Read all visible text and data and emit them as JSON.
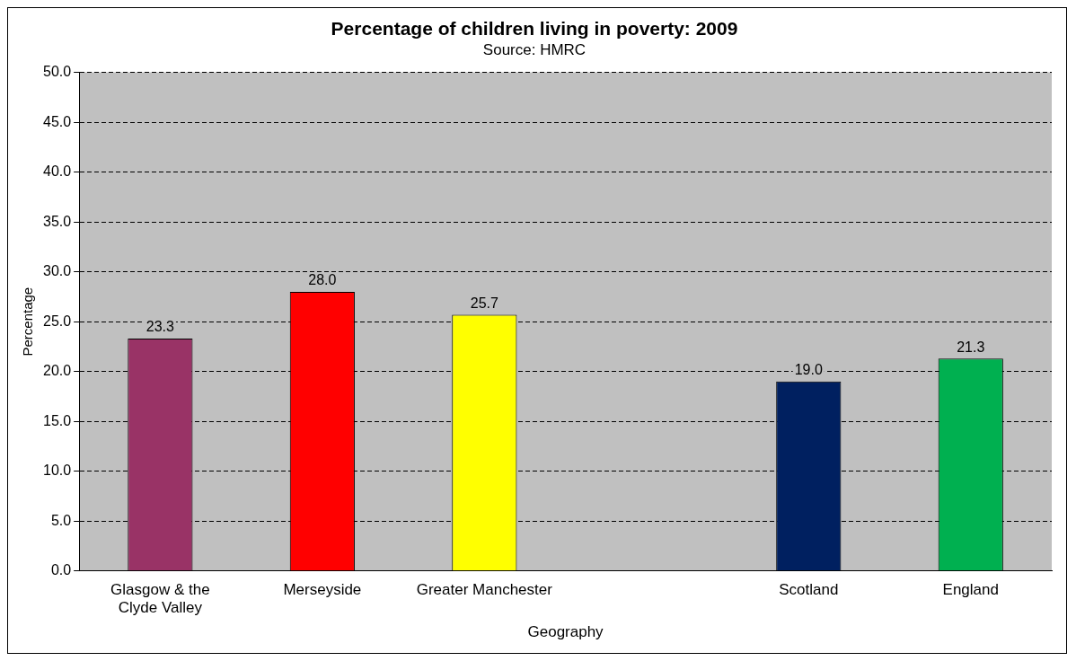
{
  "chart_data": {
    "type": "bar",
    "title": "Percentage of children living in poverty: 2009",
    "subtitle": "Source: HMRC",
    "xlabel": "Geography",
    "ylabel": "Percentage",
    "categories": [
      "Glasgow & the Clyde Valley",
      "Merseyside",
      "Greater Manchester",
      null,
      "Scotland",
      "England"
    ],
    "values": [
      23.3,
      28.0,
      25.7,
      null,
      19.0,
      21.3
    ],
    "colors": [
      "#993366",
      "#ff0000",
      "#ffff00",
      "#c0c0c0",
      "#002060",
      "#00b050"
    ],
    "value_labels": [
      "23.3",
      "28.0",
      "25.7",
      null,
      "19.0",
      "21.3"
    ],
    "ylim": [
      0,
      50
    ],
    "yticks": [
      {
        "value": 0,
        "label": "0.0"
      },
      {
        "value": 5,
        "label": "5.0"
      },
      {
        "value": 10,
        "label": "10.0"
      },
      {
        "value": 15,
        "label": "15.0"
      },
      {
        "value": 20,
        "label": "20.0"
      },
      {
        "value": 25,
        "label": "25.0"
      },
      {
        "value": 30,
        "label": "30.0"
      },
      {
        "value": 35,
        "label": "35.0"
      },
      {
        "value": 40,
        "label": "40.0"
      },
      {
        "value": 45,
        "label": "45.0"
      },
      {
        "value": 50,
        "label": "50.0"
      }
    ],
    "grid": "y",
    "legend": false
  }
}
